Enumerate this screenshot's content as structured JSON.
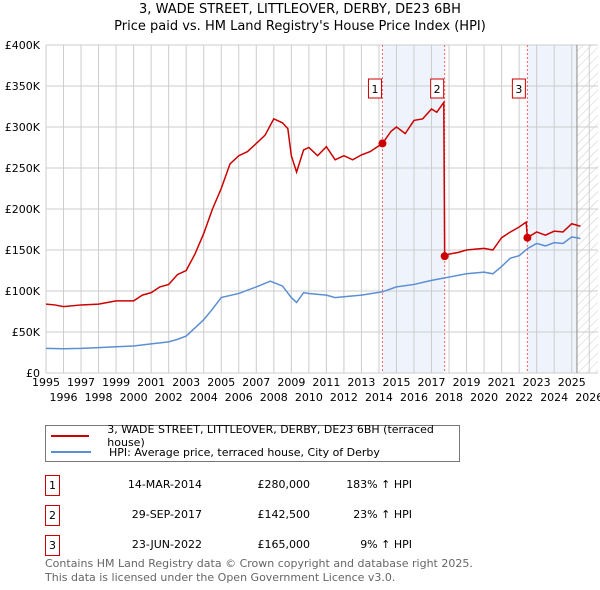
{
  "title": "3, WADE STREET, LITTLEOVER, DERBY, DE23 6BH",
  "subtitle": "Price paid vs. HM Land Registry's House Price Index (HPI)",
  "chart_data": {
    "type": "line",
    "title": "3, WADE STREET, LITTLEOVER, DERBY, DE23 6BH",
    "subtitle": "Price paid vs. HM Land Registry's House Price Index (HPI)",
    "xlim": [
      1995,
      2026
    ],
    "ylim": [
      0,
      400000
    ],
    "x_ticks": [
      "1995",
      "1996",
      "1997",
      "1998",
      "1999",
      "2000",
      "2001",
      "2002",
      "2003",
      "2004",
      "2005",
      "2006",
      "2007",
      "2008",
      "2009",
      "2010",
      "2011",
      "2012",
      "2013",
      "2014",
      "2015",
      "2016",
      "2017",
      "2018",
      "2019",
      "2020",
      "2021",
      "2022",
      "2023",
      "2024",
      "2025",
      "2026"
    ],
    "y_ticks": [
      {
        "v": 0,
        "label": "£0"
      },
      {
        "v": 50000,
        "label": "£50K"
      },
      {
        "v": 100000,
        "label": "£100K"
      },
      {
        "v": 150000,
        "label": "£150K"
      },
      {
        "v": 200000,
        "label": "£200K"
      },
      {
        "v": 250000,
        "label": "£250K"
      },
      {
        "v": 300000,
        "label": "£300K"
      },
      {
        "v": 350000,
        "label": "£350K"
      },
      {
        "v": 400000,
        "label": "£400K"
      }
    ],
    "grid": true,
    "series": [
      {
        "name": "3, WADE STREET, LITTLEOVER, DERBY, DE23 6BH (terraced house)",
        "color": "#cc0000",
        "x": [
          1995,
          1995.5,
          1996,
          1997,
          1998,
          1999,
          2000,
          2000.5,
          2001,
          2001.5,
          2002,
          2002.5,
          2003,
          2003.5,
          2004,
          2004.5,
          2005,
          2005.5,
          2006,
          2006.5,
          2007,
          2007.5,
          2008,
          2008.5,
          2008.8,
          2009,
          2009.3,
          2009.7,
          2010,
          2010.5,
          2011,
          2011.5,
          2012,
          2012.5,
          2013,
          2013.5,
          2014.2,
          2014.7,
          2015,
          2015.5,
          2016,
          2016.5,
          2017,
          2017.3,
          2017.7,
          2017.75,
          2018,
          2018.5,
          2019,
          2019.5,
          2020,
          2020.5,
          2021,
          2021.5,
          2022,
          2022.4,
          2022.47,
          2023,
          2023.5,
          2024,
          2024.5,
          2025,
          2025.5
        ],
        "y": [
          84000,
          83000,
          81000,
          83000,
          84000,
          88000,
          88000,
          95000,
          98000,
          105000,
          108000,
          120000,
          125000,
          145000,
          170000,
          200000,
          225000,
          255000,
          265000,
          270000,
          280000,
          290000,
          310000,
          305000,
          298000,
          265000,
          245000,
          272000,
          275000,
          265000,
          276000,
          260000,
          265000,
          260000,
          266000,
          270000,
          280000,
          295000,
          300000,
          292000,
          308000,
          310000,
          322000,
          318000,
          330000,
          142500,
          145000,
          147000,
          150000,
          151000,
          152000,
          150000,
          165000,
          172000,
          178000,
          184000,
          165000,
          172000,
          168000,
          173000,
          172000,
          182000,
          179000
        ]
      },
      {
        "name": "HPI: Average price, terraced house, City of Derby",
        "color": "#5b8fd4",
        "x": [
          1995,
          1996,
          1997,
          1998,
          1999,
          2000,
          2001,
          2002,
          2002.5,
          2003,
          2003.5,
          2004,
          2004.5,
          2005,
          2006,
          2007,
          2007.8,
          2008.5,
          2009,
          2009.3,
          2009.7,
          2010,
          2011,
          2011.5,
          2012,
          2013,
          2014.2,
          2015,
          2016,
          2017,
          2017.75,
          2018,
          2019,
          2020,
          2020.5,
          2021,
          2021.5,
          2022,
          2022.5,
          2023,
          2023.5,
          2024,
          2024.5,
          2025,
          2025.5
        ],
        "y": [
          30000,
          29500,
          30000,
          31000,
          32000,
          33000,
          35500,
          38000,
          41000,
          45000,
          55000,
          65000,
          78000,
          92000,
          97000,
          105000,
          112000,
          106000,
          92000,
          86000,
          98000,
          97000,
          95000,
          92000,
          93000,
          95000,
          99000,
          105000,
          108000,
          113000,
          116000,
          117000,
          121000,
          123000,
          121000,
          130000,
          140000,
          143000,
          152000,
          158000,
          155000,
          159000,
          158000,
          166000,
          164000
        ]
      }
    ],
    "transactions": [
      {
        "num": "1",
        "x": 2014.2,
        "y": 280000,
        "date": "14-MAR-2014",
        "price": "£280,000",
        "hpi": "183% ↑ HPI"
      },
      {
        "num": "2",
        "x": 2017.75,
        "y": 142500,
        "date": "29-SEP-2017",
        "price": "£142,500",
        "hpi": "23% ↑ HPI"
      },
      {
        "num": "3",
        "x": 2022.47,
        "y": 165000,
        "date": "23-JUN-2022",
        "price": "£165,000",
        "hpi": "9% ↑ HPI"
      }
    ],
    "shaded_ranges": [
      [
        2014.2,
        2017.75
      ],
      [
        2022.47,
        2025.3
      ]
    ],
    "future_hatch_from": 2025.3
  },
  "legend": {
    "red": "3, WADE STREET, LITTLEOVER, DERBY, DE23 6BH (terraced house)",
    "blue": "HPI: Average price, terraced house, City of Derby"
  },
  "footer": {
    "line1": "Contains HM Land Registry data © Crown copyright and database right 2025.",
    "line2": "This data is licensed under the Open Government Licence v3.0."
  }
}
